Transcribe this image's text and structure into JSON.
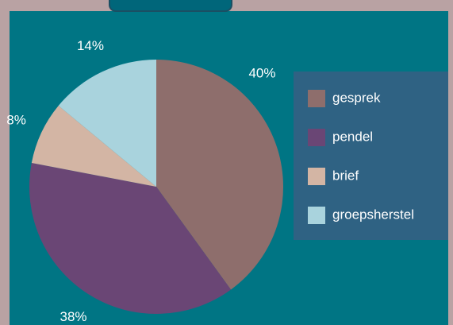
{
  "chart_data": {
    "type": "pie",
    "categories": [
      "gesprek",
      "pendel",
      "brief",
      "groepsherstel"
    ],
    "values": [
      40,
      38,
      8,
      14
    ],
    "value_labels": [
      "40%",
      "38%",
      "8%",
      "14%"
    ],
    "colors": [
      "#8e6e6c",
      "#6a4675",
      "#d3b5a4",
      "#a9d3dd"
    ],
    "legend": "right"
  }
}
